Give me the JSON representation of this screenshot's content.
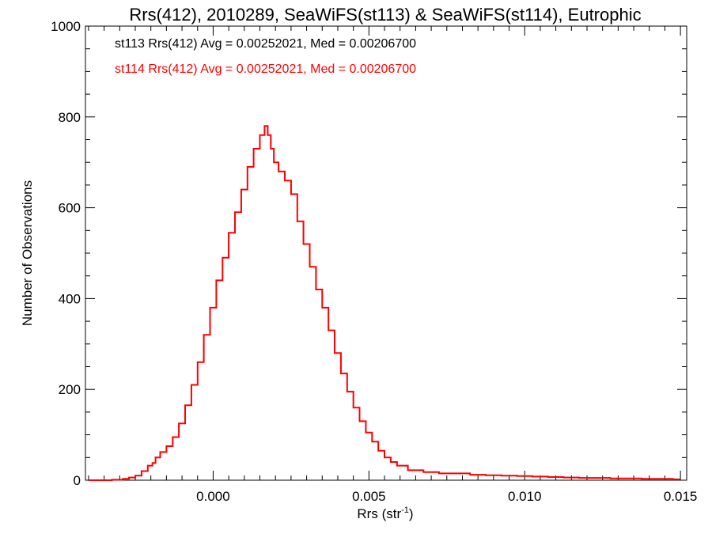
{
  "chart_data": {
    "type": "line",
    "title": "Rrs(412), 2010289, SeaWiFS(st113) & SeaWiFS(st114), Eutrophic",
    "xlabel": "Rrs (str",
    "xlabel_sup": "-1",
    "xlabel_close": ")",
    "ylabel": "Number of Observations",
    "xlim": [
      -0.0041,
      0.0152
    ],
    "ylim": [
      0,
      1000
    ],
    "x_ticks": [
      0.0,
      0.005,
      0.01,
      0.015
    ],
    "x_tick_labels": [
      "0.000",
      "0.005",
      "0.010",
      "0.015"
    ],
    "y_ticks": [
      0,
      200,
      400,
      600,
      800,
      1000
    ],
    "y_tick_labels": [
      "0",
      "200",
      "400",
      "600",
      "800",
      "1000"
    ],
    "grid": false,
    "annotations": [
      {
        "text": "st113 Rrs(412) Avg = 0.00252021, Med = 0.00206700",
        "color": "#000000"
      },
      {
        "text": "st114 Rrs(412) Avg = 0.00252021, Med = 0.00206700",
        "color": "#ff0000"
      }
    ],
    "series": [
      {
        "color": "#000000",
        "style": "histogram-step",
        "x": [
          -0.004,
          -0.0035,
          -0.003,
          -0.0028,
          -0.0026,
          -0.0024,
          -0.0022,
          -0.002,
          -0.0019,
          -0.0018,
          -0.0016,
          -0.0014,
          -0.0012,
          -0.001,
          -0.0008,
          -0.0006,
          -0.0004,
          -0.0002,
          0.0,
          0.0002,
          0.0004,
          0.0006,
          0.0008,
          0.001,
          0.0012,
          0.0014,
          0.0016,
          0.0017,
          0.0018,
          0.0019,
          0.002,
          0.0022,
          0.0024,
          0.0026,
          0.0028,
          0.003,
          0.0032,
          0.0034,
          0.0036,
          0.0038,
          0.004,
          0.0042,
          0.0044,
          0.0046,
          0.0048,
          0.005,
          0.0052,
          0.0054,
          0.0056,
          0.0058,
          0.006,
          0.0065,
          0.007,
          0.0075,
          0.008,
          0.0085,
          0.009,
          0.0095,
          0.01,
          0.0105,
          0.011,
          0.0115,
          0.012,
          0.0125,
          0.013,
          0.0135,
          0.014,
          0.0145,
          0.015
        ],
        "values": [
          0,
          0,
          1,
          3,
          6,
          10,
          20,
          32,
          38,
          50,
          62,
          75,
          95,
          125,
          165,
          210,
          260,
          320,
          380,
          440,
          490,
          545,
          590,
          640,
          690,
          730,
          760,
          780,
          760,
          730,
          700,
          680,
          660,
          630,
          570,
          520,
          470,
          420,
          380,
          330,
          280,
          235,
          195,
          160,
          130,
          105,
          85,
          65,
          50,
          40,
          32,
          22,
          18,
          15,
          15,
          12,
          11,
          10,
          9,
          8,
          7,
          6,
          5,
          5,
          4,
          4,
          3,
          3,
          2
        ]
      },
      {
        "color": "#ff0000",
        "style": "histogram-step",
        "x": [
          -0.004,
          -0.0035,
          -0.003,
          -0.0028,
          -0.0026,
          -0.0024,
          -0.0022,
          -0.002,
          -0.0019,
          -0.0018,
          -0.0016,
          -0.0014,
          -0.0012,
          -0.001,
          -0.0008,
          -0.0006,
          -0.0004,
          -0.0002,
          0.0,
          0.0002,
          0.0004,
          0.0006,
          0.0008,
          0.001,
          0.0012,
          0.0014,
          0.0016,
          0.0017,
          0.0018,
          0.0019,
          0.002,
          0.0022,
          0.0024,
          0.0026,
          0.0028,
          0.003,
          0.0032,
          0.0034,
          0.0036,
          0.0038,
          0.004,
          0.0042,
          0.0044,
          0.0046,
          0.0048,
          0.005,
          0.0052,
          0.0054,
          0.0056,
          0.0058,
          0.006,
          0.0065,
          0.007,
          0.0075,
          0.008,
          0.0085,
          0.009,
          0.0095,
          0.01,
          0.0105,
          0.011,
          0.0115,
          0.012,
          0.0125,
          0.013,
          0.0135,
          0.014,
          0.0145,
          0.015
        ],
        "values": [
          0,
          0,
          1,
          3,
          6,
          10,
          20,
          32,
          38,
          50,
          62,
          75,
          95,
          125,
          165,
          210,
          260,
          320,
          380,
          440,
          490,
          545,
          590,
          640,
          690,
          730,
          760,
          780,
          760,
          730,
          700,
          680,
          660,
          630,
          570,
          520,
          470,
          420,
          380,
          330,
          280,
          235,
          195,
          160,
          130,
          105,
          85,
          65,
          50,
          40,
          32,
          22,
          18,
          15,
          15,
          12,
          11,
          10,
          9,
          8,
          7,
          6,
          5,
          5,
          4,
          4,
          3,
          3,
          2
        ]
      }
    ]
  }
}
